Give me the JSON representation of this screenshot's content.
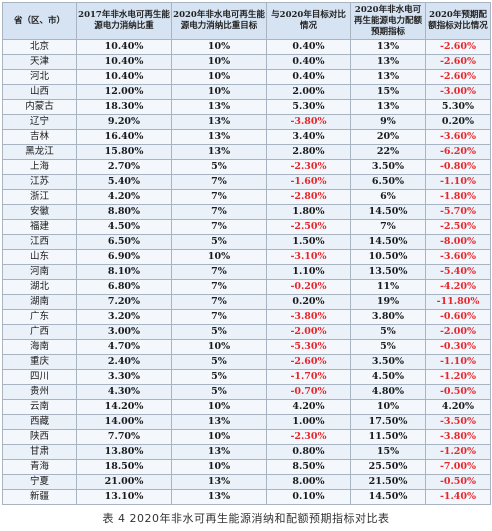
{
  "table": {
    "header": [
      "省（区、市）",
      "2017年非水电可再生能源电力消纳比重",
      "2020年非水电可再生能源电力消纳比重目标",
      "与2020年目标对比情况",
      "2020年非水电可再生能源电力配额预期指标",
      "2020年预期配额指标对比情况"
    ],
    "rows": [
      [
        "北京",
        "10.40%",
        "10%",
        "0.40%",
        "13%",
        "-2.60%"
      ],
      [
        "天津",
        "10.40%",
        "10%",
        "0.40%",
        "13%",
        "-2.60%"
      ],
      [
        "河北",
        "10.40%",
        "10%",
        "0.40%",
        "13%",
        "-2.60%"
      ],
      [
        "山西",
        "12.00%",
        "10%",
        "2.00%",
        "15%",
        "-3.00%"
      ],
      [
        "内蒙古",
        "18.30%",
        "13%",
        "5.30%",
        "13%",
        "5.30%"
      ],
      [
        "辽宁",
        "9.20%",
        "13%",
        "-3.80%",
        "9%",
        "0.20%"
      ],
      [
        "吉林",
        "16.40%",
        "13%",
        "3.40%",
        "20%",
        "-3.60%"
      ],
      [
        "黑龙江",
        "15.80%",
        "13%",
        "2.80%",
        "22%",
        "-6.20%"
      ],
      [
        "上海",
        "2.70%",
        "5%",
        "-2.30%",
        "3.50%",
        "-0.80%"
      ],
      [
        "江苏",
        "5.40%",
        "7%",
        "-1.60%",
        "6.50%",
        "-1.10%"
      ],
      [
        "浙江",
        "4.20%",
        "7%",
        "-2.80%",
        "6%",
        "-1.80%"
      ],
      [
        "安徽",
        "8.80%",
        "7%",
        "1.80%",
        "14.50%",
        "-5.70%"
      ],
      [
        "福建",
        "4.50%",
        "7%",
        "-2.50%",
        "7%",
        "-2.50%"
      ],
      [
        "江西",
        "6.50%",
        "5%",
        "1.50%",
        "14.50%",
        "-8.00%"
      ],
      [
        "山东",
        "6.90%",
        "10%",
        "-3.10%",
        "10.50%",
        "-3.60%"
      ],
      [
        "河南",
        "8.10%",
        "7%",
        "1.10%",
        "13.50%",
        "-5.40%"
      ],
      [
        "湖北",
        "6.80%",
        "7%",
        "-0.20%",
        "11%",
        "-4.20%"
      ],
      [
        "湖南",
        "7.20%",
        "7%",
        "0.20%",
        "19%",
        "-11.80%"
      ],
      [
        "广东",
        "3.20%",
        "7%",
        "-3.80%",
        "3.80%",
        "-0.60%"
      ],
      [
        "广西",
        "3.00%",
        "5%",
        "-2.00%",
        "5%",
        "-2.00%"
      ],
      [
        "海南",
        "4.70%",
        "10%",
        "-5.30%",
        "5%",
        "-0.30%"
      ],
      [
        "重庆",
        "2.40%",
        "5%",
        "-2.60%",
        "3.50%",
        "-1.10%"
      ],
      [
        "四川",
        "3.30%",
        "5%",
        "-1.70%",
        "4.50%",
        "-1.20%"
      ],
      [
        "贵州",
        "4.30%",
        "5%",
        "-0.70%",
        "4.80%",
        "-0.50%"
      ],
      [
        "云南",
        "14.20%",
        "10%",
        "4.20%",
        "10%",
        "4.20%"
      ],
      [
        "西藏",
        "14.00%",
        "13%",
        "1.00%",
        "17.50%",
        "-3.50%"
      ],
      [
        "陕西",
        "7.70%",
        "10%",
        "-2.30%",
        "11.50%",
        "-3.80%"
      ],
      [
        "甘肃",
        "13.80%",
        "13%",
        "0.80%",
        "15%",
        "-1.20%"
      ],
      [
        "青海",
        "18.50%",
        "10%",
        "8.50%",
        "25.50%",
        "-7.00%"
      ],
      [
        "宁夏",
        "21.00%",
        "13%",
        "8.00%",
        "21.50%",
        "-0.50%"
      ],
      [
        "新疆",
        "13.10%",
        "13%",
        "0.10%",
        "14.50%",
        "-1.40%"
      ]
    ]
  },
  "caption": "表 4 2020年非水可再生能源消纳和配额预期指标对比表"
}
